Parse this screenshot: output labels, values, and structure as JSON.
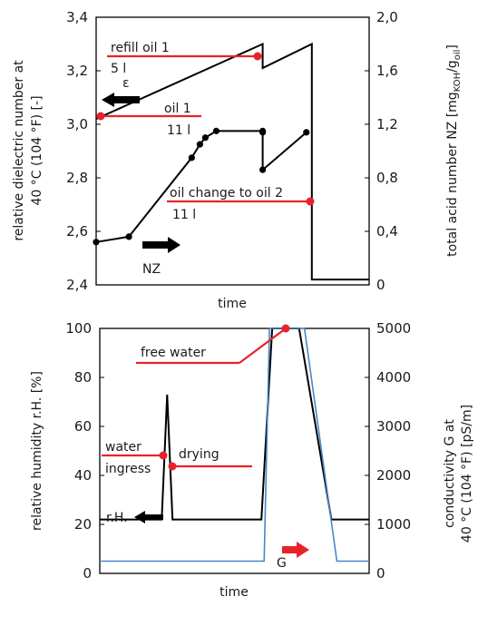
{
  "chart_data": [
    {
      "type": "line",
      "xlabel": "time",
      "ylabel": "relative dielectric number at 40 °C (104 °F) [-]",
      "ylabel_lines": [
        "relative dielectric number at",
        "40 °C (104 °F) [-]"
      ],
      "ylabel2": "total acid number NZ [mgKOH/goil]",
      "ylim": [
        2.4,
        3.4
      ],
      "yticks": [
        "2,4",
        "2,6",
        "2,8",
        "3,0",
        "3,2",
        "3,4"
      ],
      "yticks_values": [
        2.4,
        2.6,
        2.8,
        3.0,
        3.2,
        3.4
      ],
      "ylim2": [
        0,
        2.0
      ],
      "yticks2": [
        "0",
        "0,4",
        "0,8",
        "1,2",
        "1,6",
        "2,0"
      ],
      "yticks2_values": [
        0,
        0.4,
        0.8,
        1.2,
        1.6,
        2.0
      ],
      "xlim": [
        0,
        100
      ],
      "series": [
        {
          "key": "epsilon",
          "axis": "left",
          "color": "#000000",
          "x": [
            0,
            61,
            61,
            79,
            79,
            100
          ],
          "y": [
            3.02,
            3.3,
            3.21,
            3.3,
            2.42,
            2.42
          ]
        },
        {
          "key": "nz",
          "axis": "right",
          "color": "#000000",
          "markers": true,
          "x": [
            0,
            12,
            35,
            38,
            40,
            44,
            61,
            61,
            61,
            77
          ],
          "y": [
            0.32,
            0.36,
            0.95,
            1.05,
            1.1,
            1.15,
            1.15,
            1.14,
            0.86,
            1.14
          ]
        }
      ],
      "annotations": [
        {
          "label": "refill oil 1",
          "sub": "5 l"
        },
        {
          "label": "oil 1",
          "sub": "11 l"
        },
        {
          "label": "oil change to oil 2",
          "sub": "11 l"
        },
        {
          "label": "ε"
        },
        {
          "label": "NZ"
        }
      ]
    },
    {
      "type": "line",
      "xlabel": "time",
      "ylabel": "relative humidity r.H. [%]",
      "ylabel2": "conductivity G at 40 °C (104 °F) [pS/m]",
      "ylabel2_lines": [
        "conductivity G at",
        "40 °C (104 °F) [pS/m]"
      ],
      "ylim": [
        0,
        100
      ],
      "yticks": [
        "0",
        "20",
        "40",
        "60",
        "80",
        "100"
      ],
      "yticks_values": [
        0,
        20,
        40,
        60,
        80,
        100
      ],
      "ylim2": [
        0,
        5000
      ],
      "yticks2": [
        "0",
        "1000",
        "2000",
        "3000",
        "4000",
        "5000"
      ],
      "yticks2_values": [
        0,
        1000,
        2000,
        3000,
        4000,
        5000
      ],
      "xlim": [
        0,
        100
      ],
      "series": [
        {
          "key": "rh",
          "axis": "left",
          "color": "#000000",
          "x": [
            0,
            23,
            25,
            27,
            29,
            60,
            64,
            74,
            86,
            100
          ],
          "y": [
            22,
            22,
            73,
            22,
            22,
            22,
            100,
            100,
            22,
            22
          ]
        },
        {
          "key": "g",
          "axis": "right",
          "color": "#4a86c8",
          "x": [
            0,
            61,
            63,
            76,
            88,
            100
          ],
          "y": [
            250,
            250,
            5000,
            5000,
            250,
            250
          ]
        }
      ],
      "annotations": [
        {
          "label": "free water"
        },
        {
          "label": "water",
          "sub": "ingress"
        },
        {
          "label": "drying"
        },
        {
          "label": "r.H."
        },
        {
          "label": "G"
        }
      ]
    }
  ]
}
